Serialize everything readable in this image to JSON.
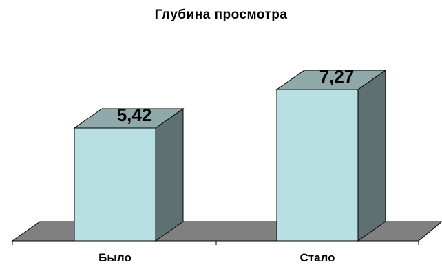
{
  "chart_data": {
    "type": "bar",
    "title": "Глубина просмотра",
    "categories": [
      "Было",
      "Стало"
    ],
    "values": [
      5.42,
      7.27
    ],
    "value_labels": [
      "5,42",
      "7,27"
    ],
    "ylim": [
      0,
      9
    ],
    "grid": false,
    "legend": "none",
    "three_d": true,
    "colors": {
      "bar_front": "#b8e0e2",
      "bar_top": "#8fa8a9",
      "bar_side": "#5e7172",
      "floor": "#808080",
      "outline": "#000000"
    }
  }
}
